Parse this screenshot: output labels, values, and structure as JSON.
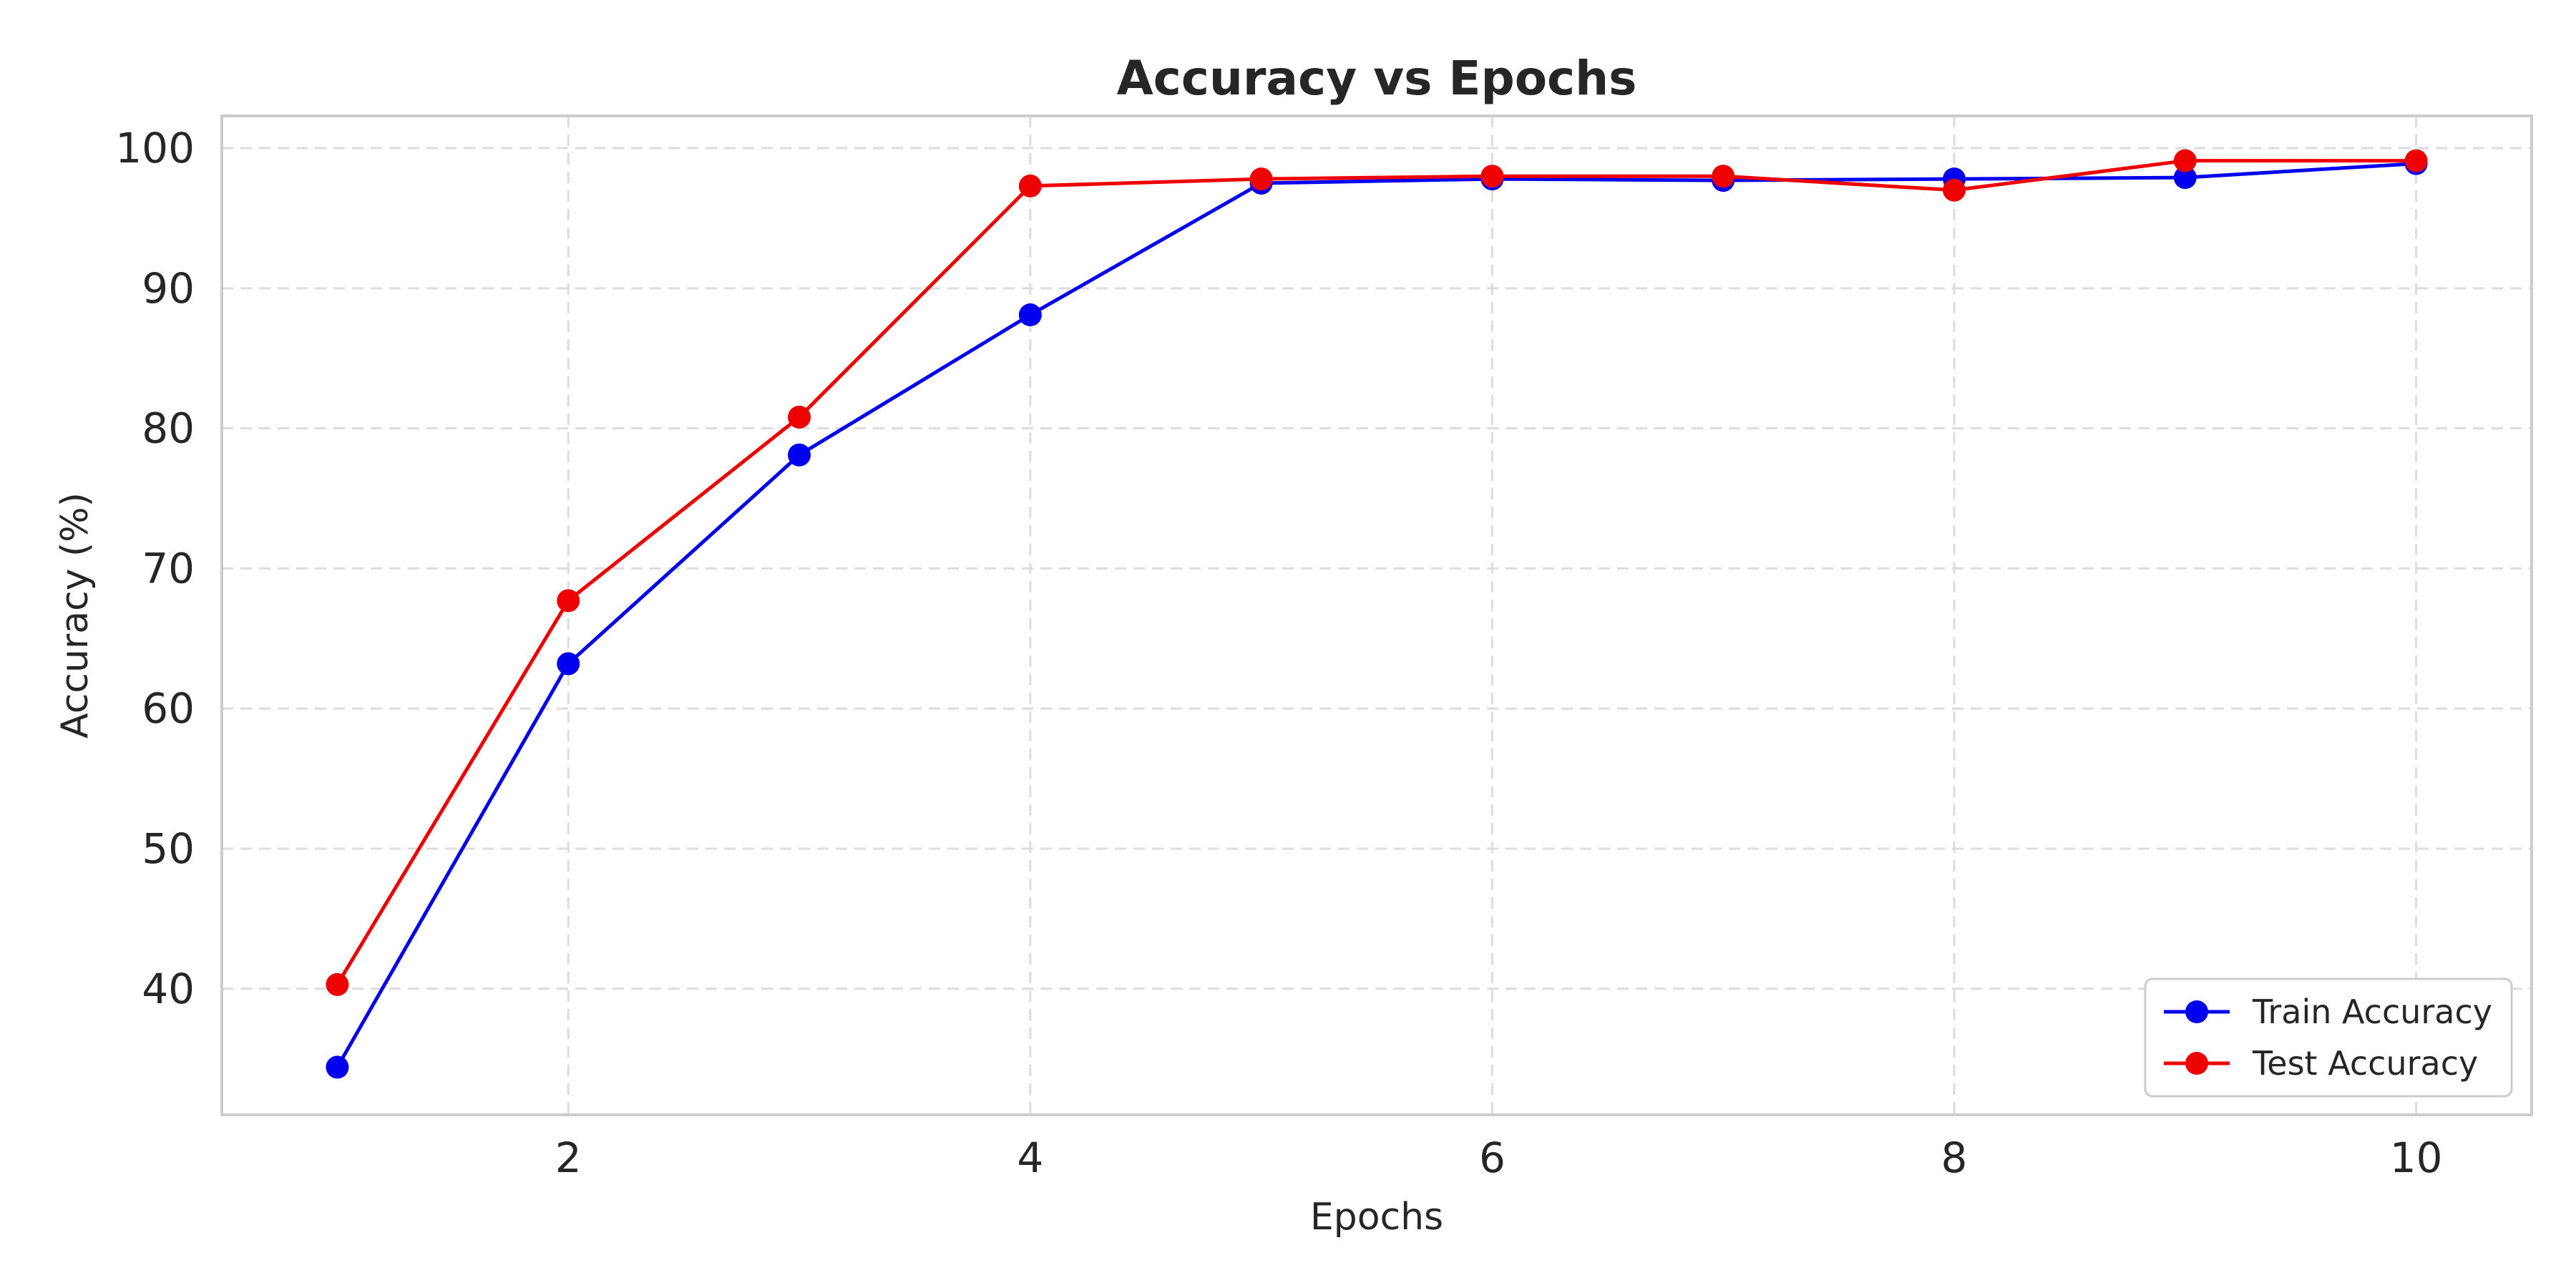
{
  "chart_data": {
    "type": "line",
    "title": "Accuracy vs Epochs",
    "xlabel": "Epochs",
    "ylabel": "Accuracy (%)",
    "x": [
      1,
      2,
      3,
      4,
      5,
      6,
      7,
      8,
      9,
      10
    ],
    "xlim": [
      0.5,
      10.5
    ],
    "ylim": [
      31,
      102.3
    ],
    "xticks": [
      2,
      4,
      6,
      8,
      10
    ],
    "yticks": [
      40,
      50,
      60,
      70,
      80,
      90,
      100
    ],
    "grid": true,
    "legend_position": "lower-right",
    "series": [
      {
        "name": "Train Accuracy",
        "color": "#0000ee",
        "values": [
          34.4,
          63.2,
          78.1,
          88.1,
          97.5,
          97.8,
          97.7,
          97.8,
          97.9,
          98.9
        ]
      },
      {
        "name": "Test Accuracy",
        "color": "#ee0000",
        "values": [
          40.3,
          67.7,
          80.8,
          97.3,
          97.8,
          98.0,
          98.0,
          97.0,
          99.1,
          99.1
        ]
      }
    ]
  }
}
